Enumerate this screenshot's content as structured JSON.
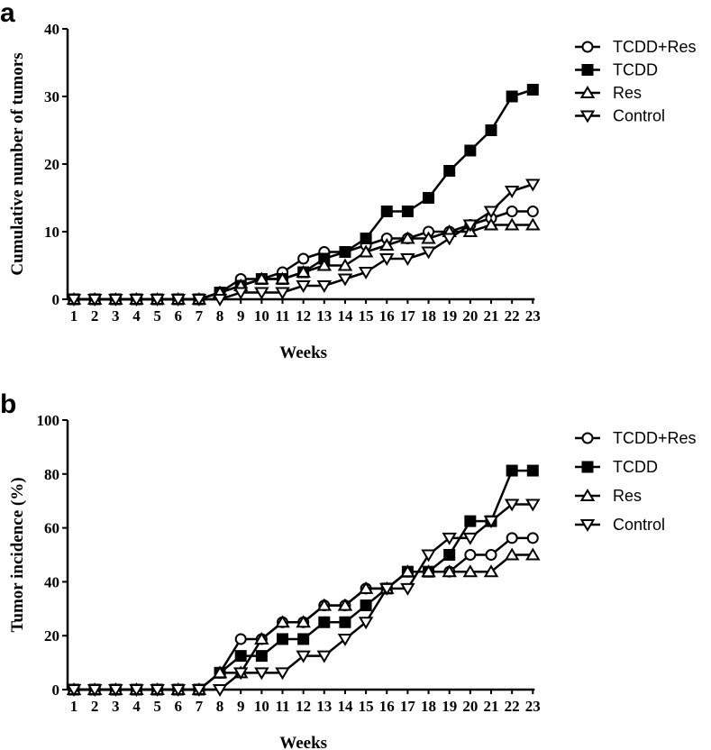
{
  "chart_data": [
    {
      "panel": "a",
      "type": "line",
      "title": "",
      "xlabel": "Weeks",
      "ylabel": "Cumulative number of tumors",
      "x": [
        1,
        2,
        3,
        4,
        5,
        6,
        7,
        8,
        9,
        10,
        11,
        12,
        13,
        14,
        15,
        16,
        17,
        18,
        19,
        20,
        21,
        22,
        23
      ],
      "ylim": [
        0,
        40
      ],
      "yticks": [
        0,
        10,
        20,
        30,
        40
      ],
      "legend_position": "top-right",
      "series": [
        {
          "name": "TCDD+Res",
          "marker": "circle-open",
          "values": [
            0,
            0,
            0,
            0,
            0,
            0,
            0,
            1,
            3,
            3,
            4,
            6,
            7,
            7,
            8,
            9,
            9,
            10,
            10,
            11,
            12,
            13,
            13
          ]
        },
        {
          "name": "TCDD",
          "marker": "square-filled",
          "values": [
            0,
            0,
            0,
            0,
            0,
            0,
            0,
            1,
            2,
            3,
            3,
            4,
            6,
            7,
            9,
            13,
            13,
            15,
            19,
            22,
            25,
            30,
            31
          ]
        },
        {
          "name": "Res",
          "marker": "triangle-up-open",
          "values": [
            0,
            0,
            0,
            0,
            0,
            0,
            0,
            1,
            2,
            3,
            3,
            4,
            5,
            5,
            7,
            8,
            9,
            9,
            10,
            10,
            11,
            11,
            11
          ]
        },
        {
          "name": "Control",
          "marker": "triangle-down-open",
          "values": [
            0,
            0,
            0,
            0,
            0,
            0,
            0,
            0,
            1,
            1,
            1,
            2,
            2,
            3,
            4,
            6,
            6,
            7,
            9,
            11,
            13,
            16,
            17
          ]
        }
      ]
    },
    {
      "panel": "b",
      "type": "line",
      "title": "",
      "xlabel": "Weeks",
      "ylabel": "Tumor incidence (%)",
      "x": [
        1,
        2,
        3,
        4,
        5,
        6,
        7,
        8,
        9,
        10,
        11,
        12,
        13,
        14,
        15,
        16,
        17,
        18,
        19,
        20,
        21,
        22,
        23
      ],
      "ylim": [
        0,
        100
      ],
      "yticks": [
        0,
        20,
        40,
        60,
        80,
        100
      ],
      "legend_position": "top-right",
      "series": [
        {
          "name": "TCDD+Res",
          "marker": "circle-open",
          "values": [
            0,
            0,
            0,
            0,
            0,
            0,
            0,
            6.25,
            18.75,
            18.75,
            25,
            25,
            31.25,
            31.25,
            37.5,
            37.5,
            43.75,
            43.75,
            43.75,
            50,
            50,
            56.25,
            56.25
          ]
        },
        {
          "name": "TCDD",
          "marker": "square-filled",
          "values": [
            0,
            0,
            0,
            0,
            0,
            0,
            0,
            6.25,
            12.5,
            12.5,
            18.75,
            18.75,
            25,
            25,
            31.25,
            37.5,
            43.75,
            43.75,
            50,
            62.5,
            62.5,
            81.25,
            81.25
          ]
        },
        {
          "name": "Res",
          "marker": "triangle-up-open",
          "values": [
            0,
            0,
            0,
            0,
            0,
            0,
            0,
            6.25,
            6.25,
            18.75,
            25,
            25,
            31.25,
            31.25,
            37.5,
            37.5,
            43.75,
            43.75,
            43.75,
            43.75,
            43.75,
            50,
            50
          ]
        },
        {
          "name": "Control",
          "marker": "triangle-down-open",
          "values": [
            0,
            0,
            0,
            0,
            0,
            0,
            0,
            0,
            6.25,
            6.25,
            6.25,
            12.5,
            12.5,
            18.75,
            25,
            37.5,
            37.5,
            50,
            56.25,
            56.25,
            62.5,
            68.75,
            68.75
          ]
        }
      ]
    }
  ]
}
